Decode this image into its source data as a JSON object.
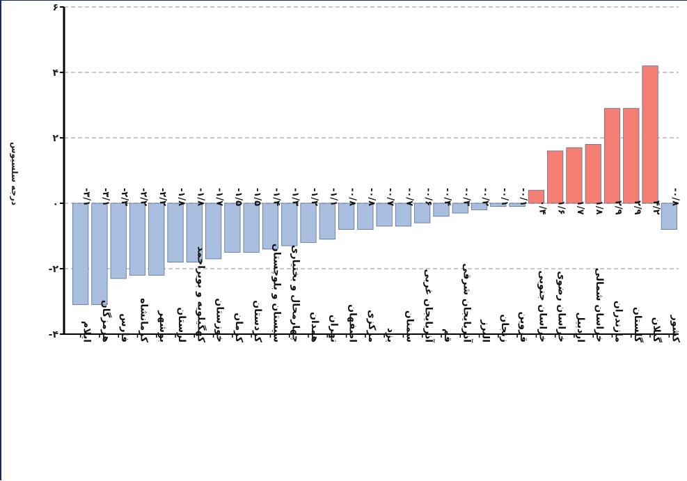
{
  "chart_data": {
    "type": "bar",
    "ylabel": "درجه سلسیوس",
    "ylim": [
      -4,
      6
    ],
    "yticks": [
      -4,
      -2,
      0,
      2,
      4,
      6
    ],
    "ytick_labels": [
      "-۴",
      "-۲",
      "۰",
      "۲",
      "۴",
      "۶"
    ],
    "grid": true,
    "categories": [
      "ایلام",
      "هرمزگان",
      "فارس",
      "کرمانشاه",
      "بوشهر",
      "لرستان",
      "کهگیلویه و بویراحمد",
      "خوزستان",
      "کرمان",
      "کردستان",
      "سیستان و بلوچستان",
      "چهارمحال و بختیاری",
      "همدان",
      "تهران",
      "اصفهان",
      "مرکزی",
      "یزد",
      "سمنان",
      "آذربایجان غربی",
      "قم",
      "آذربایجان شرقی",
      "البرز",
      "زنجان",
      "قزوین",
      "خراسان جنوبی",
      "خراسان رضوی",
      "اردبیل",
      "خراسان شمالی",
      "مازندران",
      "گلستان",
      "گیلان",
      "کشور"
    ],
    "values": [
      -3.1,
      -3.1,
      -2.3,
      -2.2,
      -2.2,
      -1.8,
      -1.8,
      -1.7,
      -1.5,
      -1.5,
      -1.4,
      -1.3,
      -1.2,
      -1.1,
      -0.8,
      -0.8,
      -0.7,
      -0.7,
      -0.6,
      -0.4,
      -0.3,
      -0.2,
      -0.1,
      -0.1,
      0.4,
      1.6,
      1.7,
      1.8,
      2.9,
      2.9,
      4.2,
      -0.8
    ],
    "value_labels": [
      "-۳/۱",
      "-۳/۱",
      "-۲/۳",
      "-۲/۲",
      "-۲/۲",
      "-۱/۸",
      "-۱/۸",
      "-۱/۷",
      "-۱/۵",
      "-۱/۵",
      "-۱/۴",
      "-۱/۳",
      "-۱/۲",
      "-۱/۱",
      "-۰/۸",
      "-۰/۸",
      "-۰/۷",
      "-۰/۷",
      "-۰/۶",
      "-۰/۴",
      "-۰/۳",
      "-۰/۲",
      "-۰/۱",
      "-۰/۱",
      "۰/۴",
      "۱/۶",
      "۱/۷",
      "۱/۸",
      "۲/۹",
      "۲/۹",
      "۴/۲",
      "-۰/۸"
    ],
    "colors": {
      "negative": "#aabee0",
      "positive": "#f57f72",
      "bar_border": "#5a6f95",
      "grid": "#c8c8c8"
    }
  }
}
